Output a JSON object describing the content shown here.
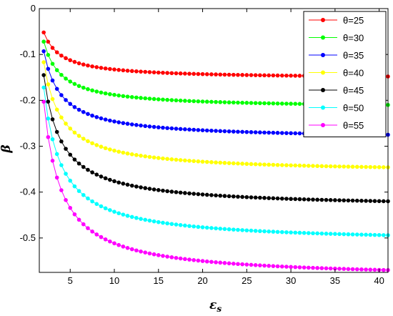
{
  "chart_data": {
    "type": "line",
    "title": "",
    "xlabel": "ε",
    "xlabel_sub": "s",
    "ylabel": "β",
    "xlim": [
      1.5,
      41
    ],
    "ylim": [
      -0.575,
      0
    ],
    "xticks": [
      5,
      10,
      15,
      20,
      25,
      30,
      35,
      40
    ],
    "yticks": [
      0,
      -0.1,
      -0.2,
      -0.3,
      -0.4,
      -0.5
    ],
    "ytick_labels": [
      "0",
      "-0.1",
      "-0.2",
      "-0.3",
      "-0.4",
      "-0.5"
    ],
    "grid": false,
    "legend_position": "top-right",
    "x_start": 2,
    "x_end": 41,
    "x_step": 0.5,
    "series": [
      {
        "name": "θ=25",
        "color": "#ff0000",
        "y_start": -0.052,
        "y_end": -0.148
      },
      {
        "name": "θ=30",
        "color": "#00ff00",
        "y_start": -0.072,
        "y_end": -0.21
      },
      {
        "name": "θ=35",
        "color": "#0000ff",
        "y_start": -0.093,
        "y_end": -0.275
      },
      {
        "name": "θ=40",
        "color": "#ffff00",
        "y_start": -0.117,
        "y_end": -0.346
      },
      {
        "name": "θ=45",
        "color": "#000000",
        "y_start": -0.145,
        "y_end": -0.42
      },
      {
        "name": "θ=50",
        "color": "#00ffff",
        "y_start": -0.172,
        "y_end": -0.494
      },
      {
        "name": "θ=55",
        "color": "#ff00ff",
        "y_start": -0.203,
        "y_end": -0.57
      }
    ]
  }
}
